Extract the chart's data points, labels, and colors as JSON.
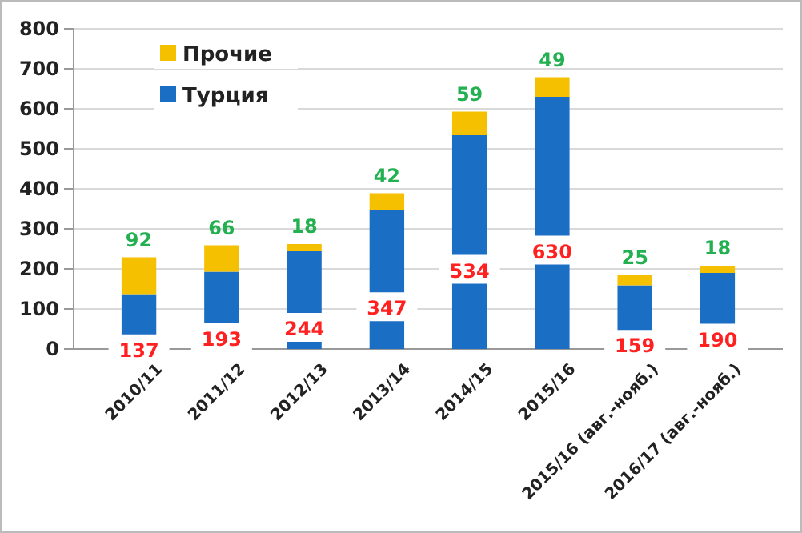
{
  "chart_data": {
    "type": "bar",
    "stacked": true,
    "categories": [
      "2010/11",
      "2011/12",
      "2012/13",
      "2013/14",
      "2014/15",
      "2015/16",
      "2015/16 (авг.-нояб.)",
      "2016/17 (авг.-нояб.)"
    ],
    "series": [
      {
        "name": "Турция",
        "color": "#1a6fc4",
        "values": [
          137,
          193,
          244,
          347,
          534,
          630,
          159,
          190
        ]
      },
      {
        "name": "Прочие",
        "color": "#f5c000",
        "values": [
          92,
          66,
          18,
          42,
          59,
          49,
          25,
          18
        ]
      }
    ],
    "ylim": [
      0,
      800
    ],
    "yticks": [
      0,
      100,
      200,
      300,
      400,
      500,
      600,
      700,
      800
    ],
    "grid": "y",
    "legend": "top left",
    "data_labels": true
  }
}
